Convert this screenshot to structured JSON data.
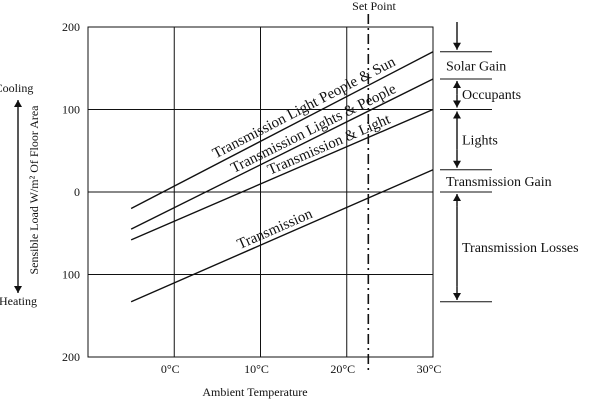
{
  "chart_data": {
    "type": "line",
    "title": "",
    "xlabel": "Ambient Temperature",
    "ylabel": "Sensible Load W/m² Of Floor Area",
    "xlim": [
      -10,
      30
    ],
    "ylim": [
      -200,
      200
    ],
    "x_ticks": [
      {
        "value": 0,
        "label": "0°C"
      },
      {
        "value": 10,
        "label": "10°C"
      },
      {
        "value": 20,
        "label": "20°C"
      },
      {
        "value": 30,
        "label": "30°C"
      }
    ],
    "y_ticks": [
      {
        "value": 200,
        "label": "200"
      },
      {
        "value": 100,
        "label": "100"
      },
      {
        "value": 0,
        "label": "0"
      },
      {
        "value": -100,
        "label": "100"
      },
      {
        "value": -200,
        "label": "200"
      }
    ],
    "grid": true,
    "set_point": {
      "x": 22.5,
      "label": "Set Point"
    },
    "series": [
      {
        "name": "Transmission Light People & Sun",
        "x": [
          -5,
          30
        ],
        "y": [
          -20,
          170
        ]
      },
      {
        "name": "Transmission Lights & People",
        "x": [
          -5,
          30
        ],
        "y": [
          -45,
          137
        ]
      },
      {
        "name": "Transmission & Light",
        "x": [
          -5,
          30
        ],
        "y": [
          -58,
          100
        ]
      },
      {
        "name": "Transmission",
        "x": [
          -5,
          30
        ],
        "y": [
          -133,
          27
        ]
      }
    ],
    "side_axis": {
      "top": "Cooling",
      "bottom": "Heating"
    },
    "gain_annotations": [
      {
        "label": "Solar Gain",
        "from": 170,
        "to": 137
      },
      {
        "label": "Occupants",
        "from": 137,
        "to": 100
      },
      {
        "label": "Lights",
        "from": 100,
        "to": 27
      },
      {
        "label": "Transmission Gain",
        "from": 27,
        "to": 0
      },
      {
        "label": "Transmission Losses",
        "from": 0,
        "to": -133
      }
    ]
  }
}
